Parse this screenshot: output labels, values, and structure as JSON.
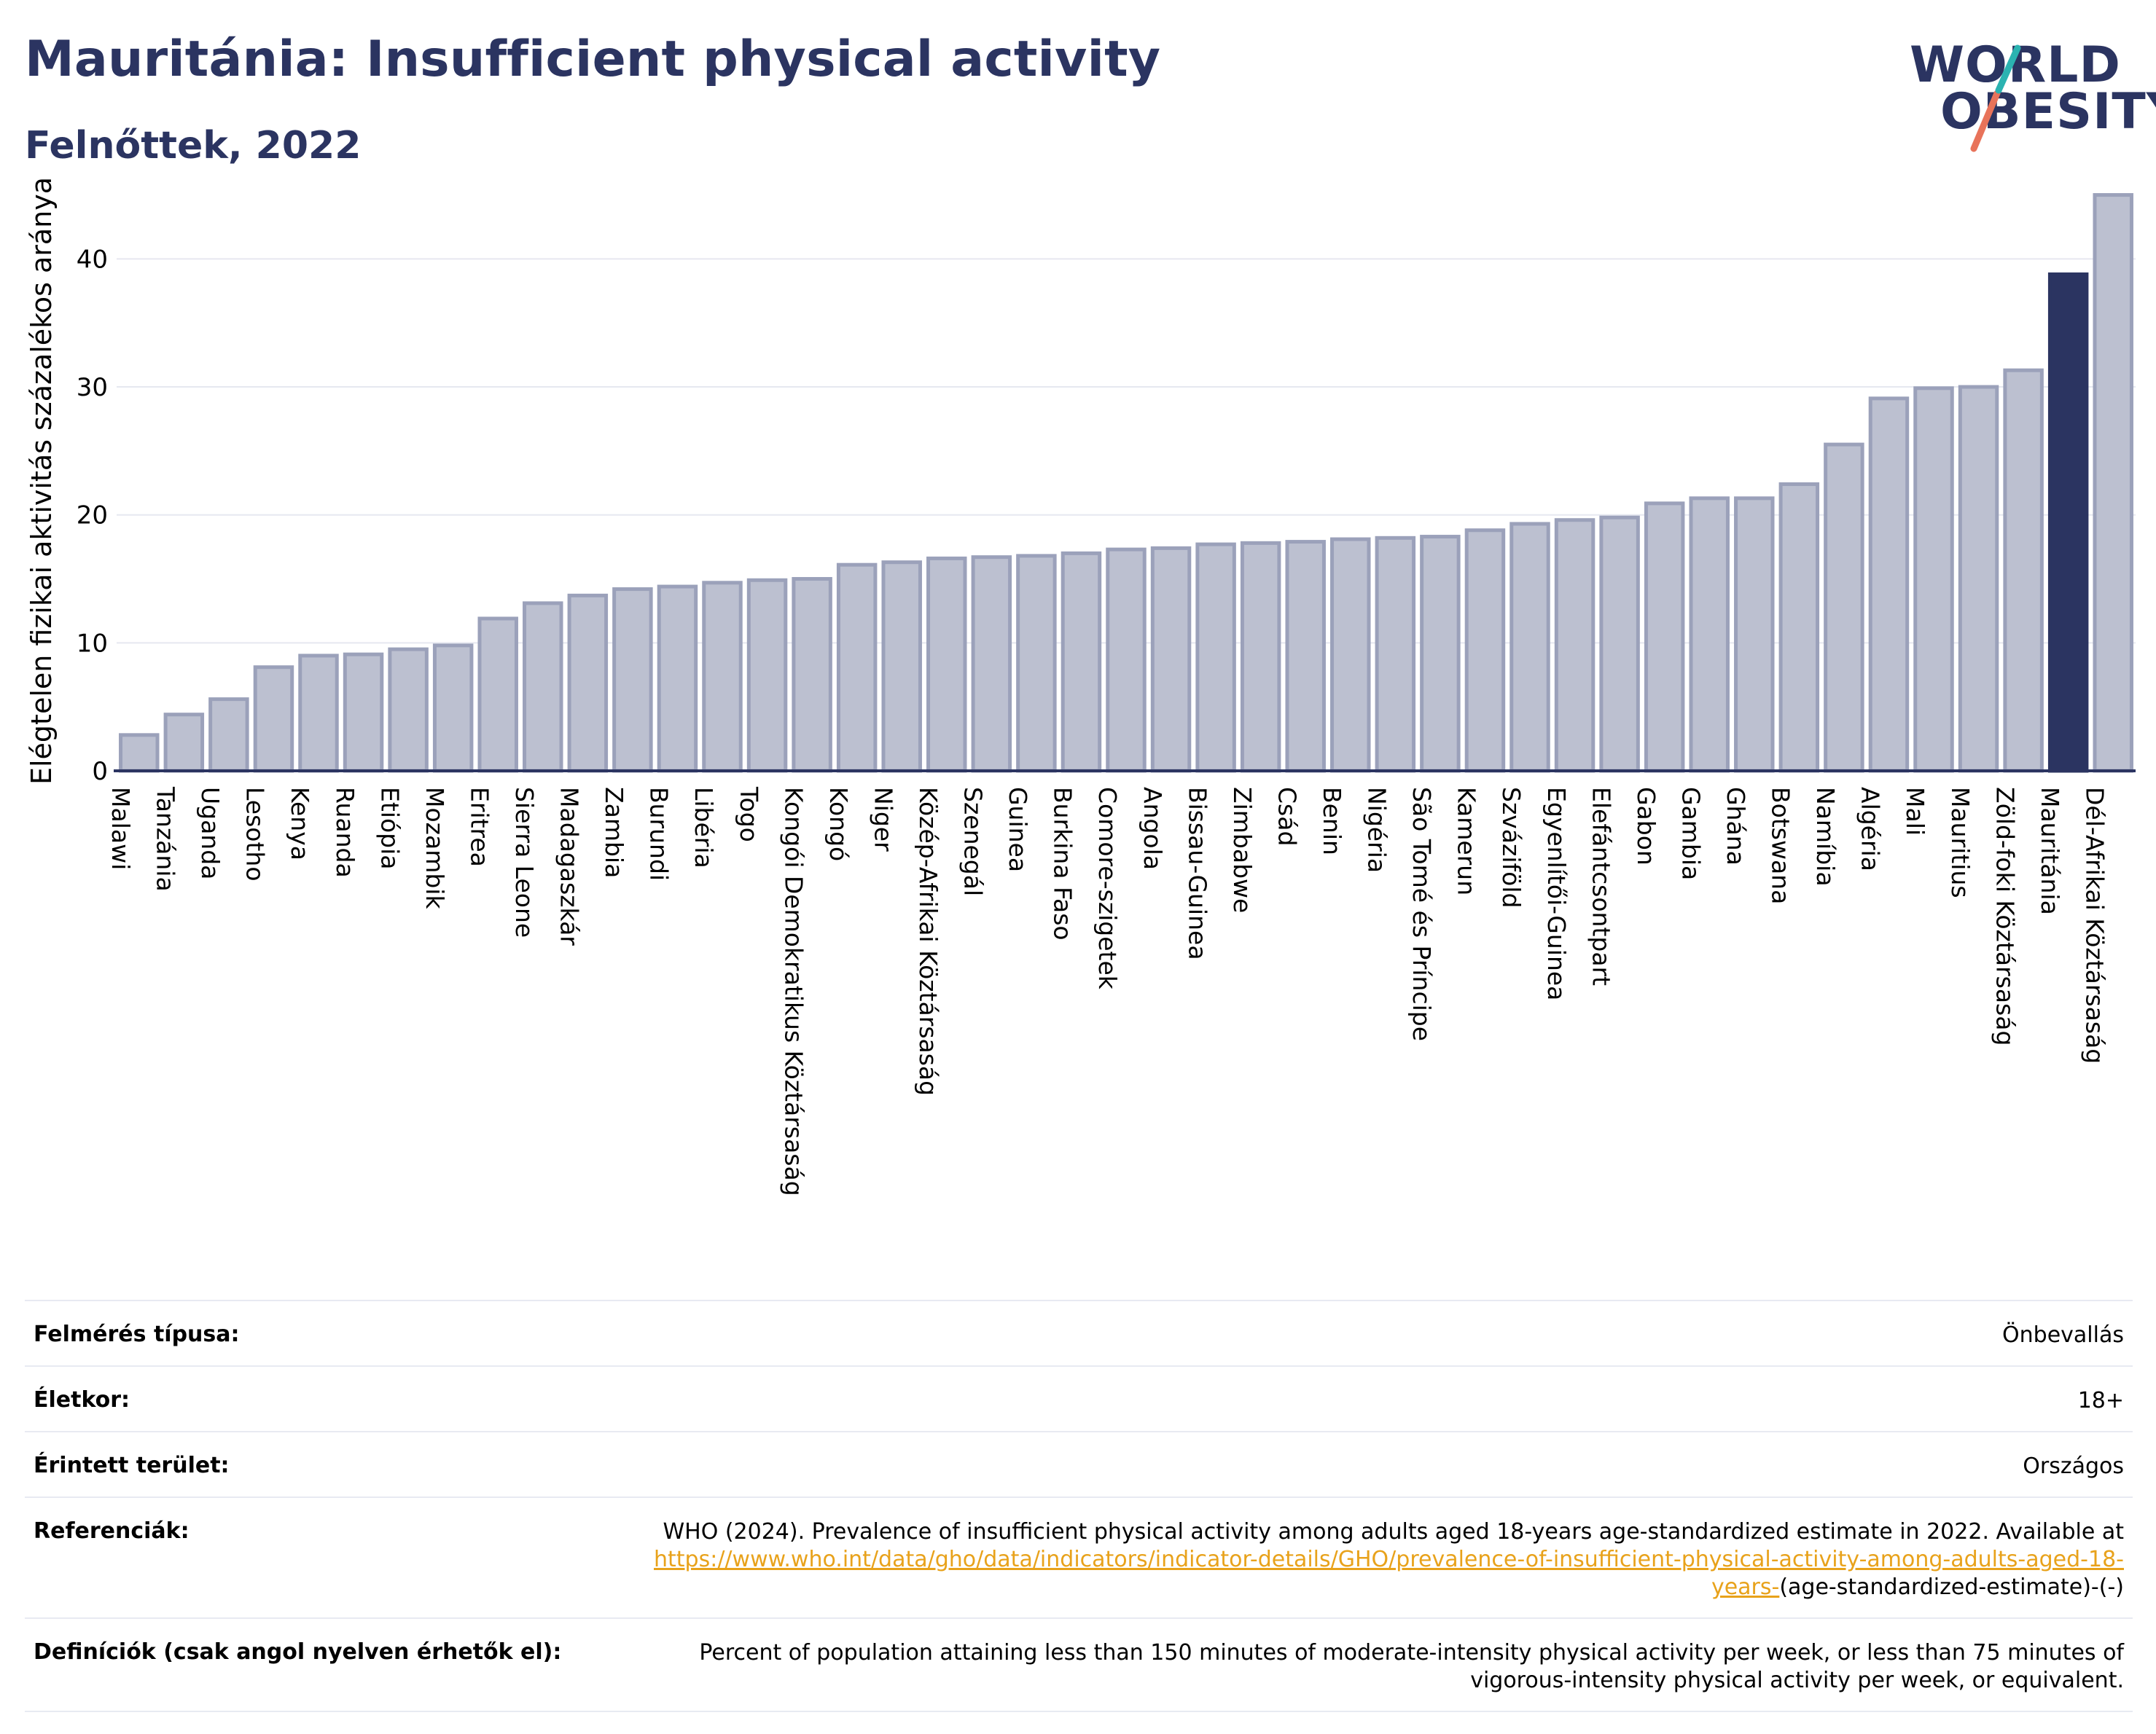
{
  "header": {
    "title": "Mauritánia: Insufficient physical activity",
    "subtitle": "Felnőttek, 2022"
  },
  "logo": {
    "line1": "WORLD",
    "line2": "OBESITY"
  },
  "colors": {
    "bar": "#bcc0d0",
    "bar_border": "#9ba1ba",
    "highlight": "#2b3461",
    "axis": "#2b3461",
    "grid": "#e6e8f0"
  },
  "chart_data": {
    "type": "bar",
    "ylabel": "Elégtelen fizikai aktivitás százalékos aránya",
    "ylim": [
      0,
      46
    ],
    "yticks": [
      0,
      10,
      20,
      30,
      40
    ],
    "grid": true,
    "highlight": "Mauritánia",
    "categories": [
      "Malawi",
      "Tanzánia",
      "Uganda",
      "Lesotho",
      "Kenya",
      "Ruanda",
      "Etiópia",
      "Mozambik",
      "Eritrea",
      "Sierra Leone",
      "Madagaszkár",
      "Zambia",
      "Burundi",
      "Libéria",
      "Togo",
      "Kongói Demokratikus Köztársaság",
      "Kongó",
      "Niger",
      "Közép-Afrikai Köztársaság",
      "Szenegál",
      "Guinea",
      "Burkina Faso",
      "Comore-szigetek",
      "Angola",
      "Bissau-Guinea",
      "Zimbabwe",
      "Csád",
      "Benin",
      "Nigéria",
      "São Tomé és Príncipe",
      "Kamerun",
      "Szváziföld",
      "Egyenlítői-Guinea",
      "Elefántcsontpart",
      "Gabon",
      "Gambia",
      "Ghána",
      "Botswana",
      "Namíbia",
      "Algéria",
      "Mali",
      "Mauritius",
      "Zöld-foki Köztársaság",
      "Mauritánia",
      "Dél-Afrikai Köztársaság"
    ],
    "values": [
      2.8,
      4.4,
      5.6,
      8.1,
      9.0,
      9.1,
      9.5,
      9.8,
      11.9,
      13.1,
      13.7,
      14.2,
      14.4,
      14.7,
      14.9,
      15.0,
      16.1,
      16.3,
      16.6,
      16.7,
      16.8,
      17.0,
      17.3,
      17.4,
      17.7,
      17.8,
      17.9,
      18.1,
      18.2,
      18.3,
      18.8,
      19.3,
      19.6,
      19.8,
      20.9,
      21.3,
      21.3,
      22.4,
      25.5,
      29.1,
      29.9,
      30.0,
      31.3,
      38.8,
      45.0
    ]
  },
  "info_table": {
    "survey_type_label": "Felmérés típusa:",
    "survey_type_value": "Önbevallás",
    "age_label": "Életkor:",
    "age_value": "18+",
    "area_label": "Érintett terület:",
    "area_value": "Országos",
    "references_label": "Referenciák:",
    "references_text": "WHO (2024). Prevalence of insufficient physical activity among adults aged 18-years age-standardized estimate in 2022. Available at",
    "references_link": "https://www.who.int/data/gho/data/indicators/indicator-details/GHO/prevalence-of-insufficient-physical-activity-among-adults-aged-18-years-",
    "references_suffix": "(age-standardized-estimate)-(-)",
    "definitions_label": "Definíciók (csak angol nyelven érhetők el):",
    "definitions_value": "Percent of population attaining less than 150 minutes of moderate-intensity physical activity per week, or less than 75 minutes of vigorous-intensity physical activity per week, or equivalent."
  }
}
